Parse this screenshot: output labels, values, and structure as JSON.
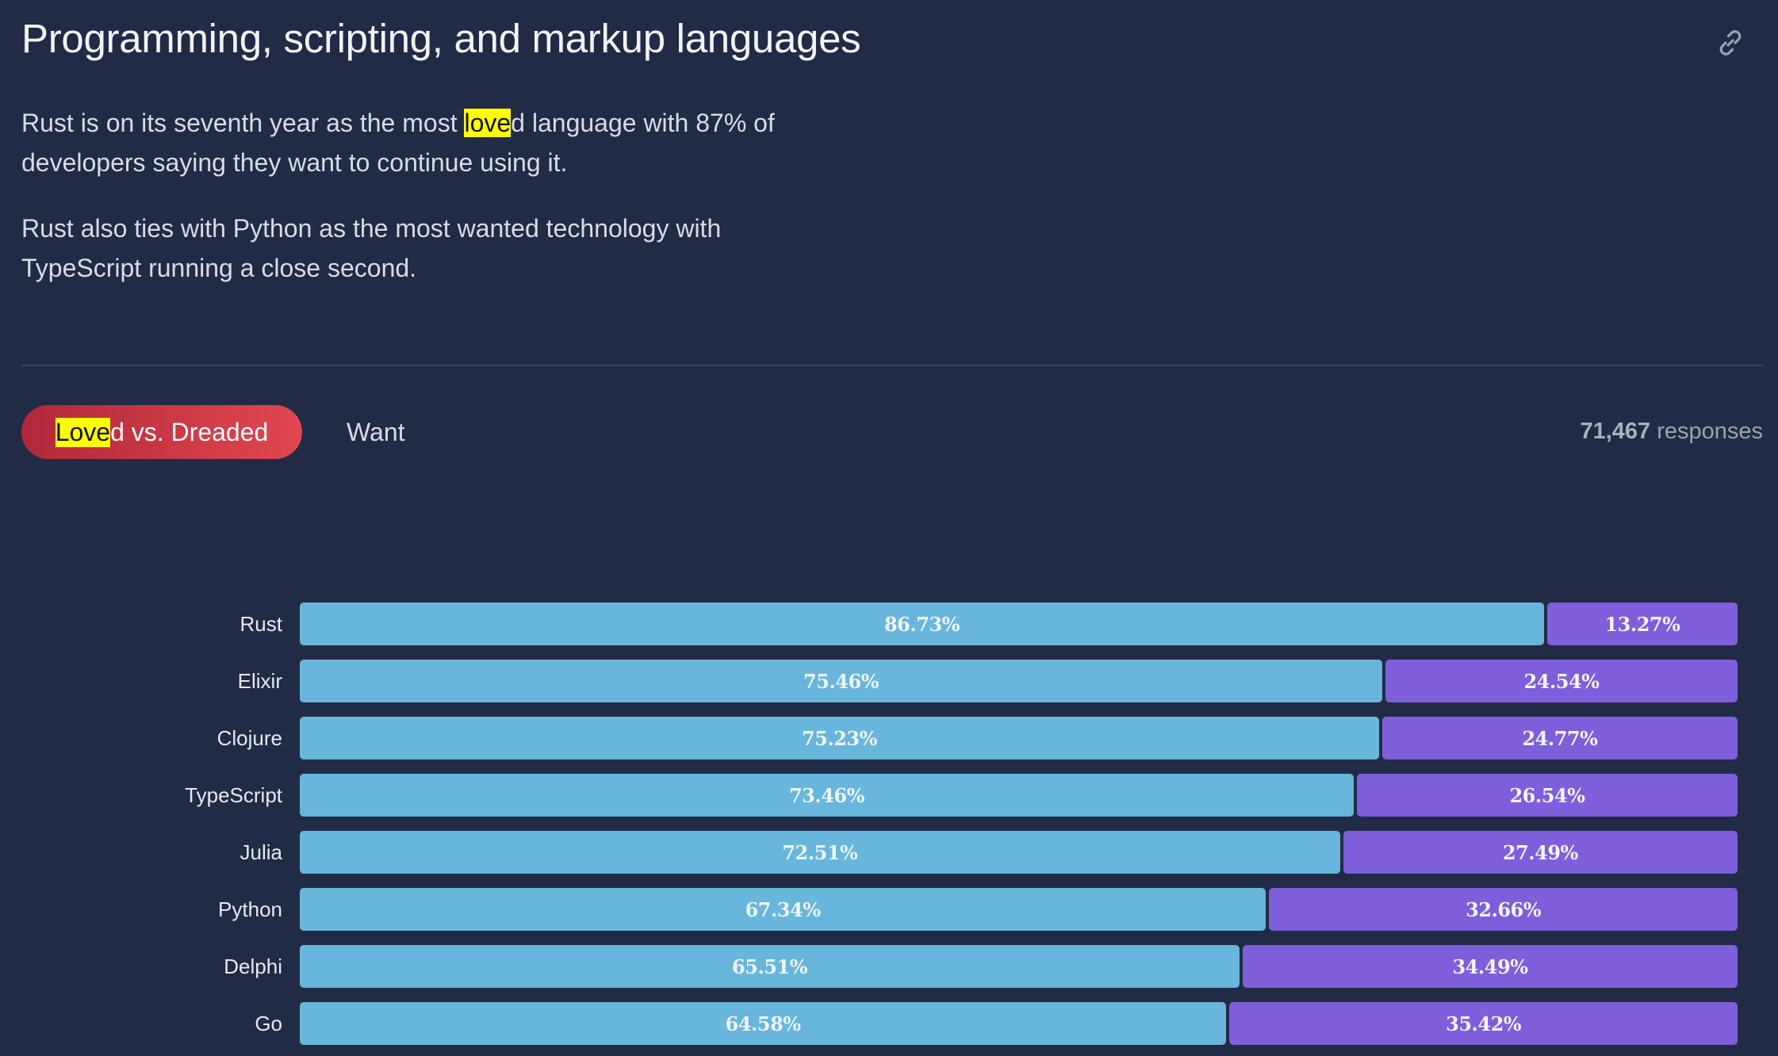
{
  "header": {
    "title": "Programming, scripting, and markup languages",
    "link_icon": "link-icon"
  },
  "intro": {
    "p1_before": "Rust is on its seventh year as the most ",
    "p1_highlight": "love",
    "p1_after": "d language with 87% of developers saying they want to continue using it.",
    "p2": "Rust also ties with Python as the most wanted technology with TypeScript running a close second."
  },
  "tabs": {
    "active_highlight": "Love",
    "active_rest": "d vs. Dreaded",
    "inactive": "Want"
  },
  "responses": {
    "count": "71,467",
    "label": " responses"
  },
  "colors": {
    "loved": "#68b6dc",
    "dreaded": "#7e5edb",
    "tab_active_start": "#b0283a",
    "tab_active_end": "#e1474f",
    "highlight": "#ffff00"
  },
  "chart_data": {
    "type": "bar",
    "orientation": "horizontal-stacked-100",
    "categories": [
      "Rust",
      "Elixir",
      "Clojure",
      "TypeScript",
      "Julia",
      "Python",
      "Delphi",
      "Go"
    ],
    "series": [
      {
        "name": "Loved",
        "values": [
          86.73,
          75.46,
          75.23,
          73.46,
          72.51,
          67.34,
          65.51,
          64.58
        ]
      },
      {
        "name": "Dreaded",
        "values": [
          13.27,
          24.54,
          24.77,
          26.54,
          27.49,
          32.66,
          34.49,
          35.42
        ]
      }
    ],
    "labels_loved": [
      "86.73%",
      "75.46%",
      "75.23%",
      "73.46%",
      "72.51%",
      "67.34%",
      "65.51%",
      "64.58%"
    ],
    "labels_dreaded": [
      "13.27%",
      "24.54%",
      "24.77%",
      "26.54%",
      "27.49%",
      "32.66%",
      "34.49%",
      "35.42%"
    ],
    "xlim": [
      0,
      100
    ]
  }
}
